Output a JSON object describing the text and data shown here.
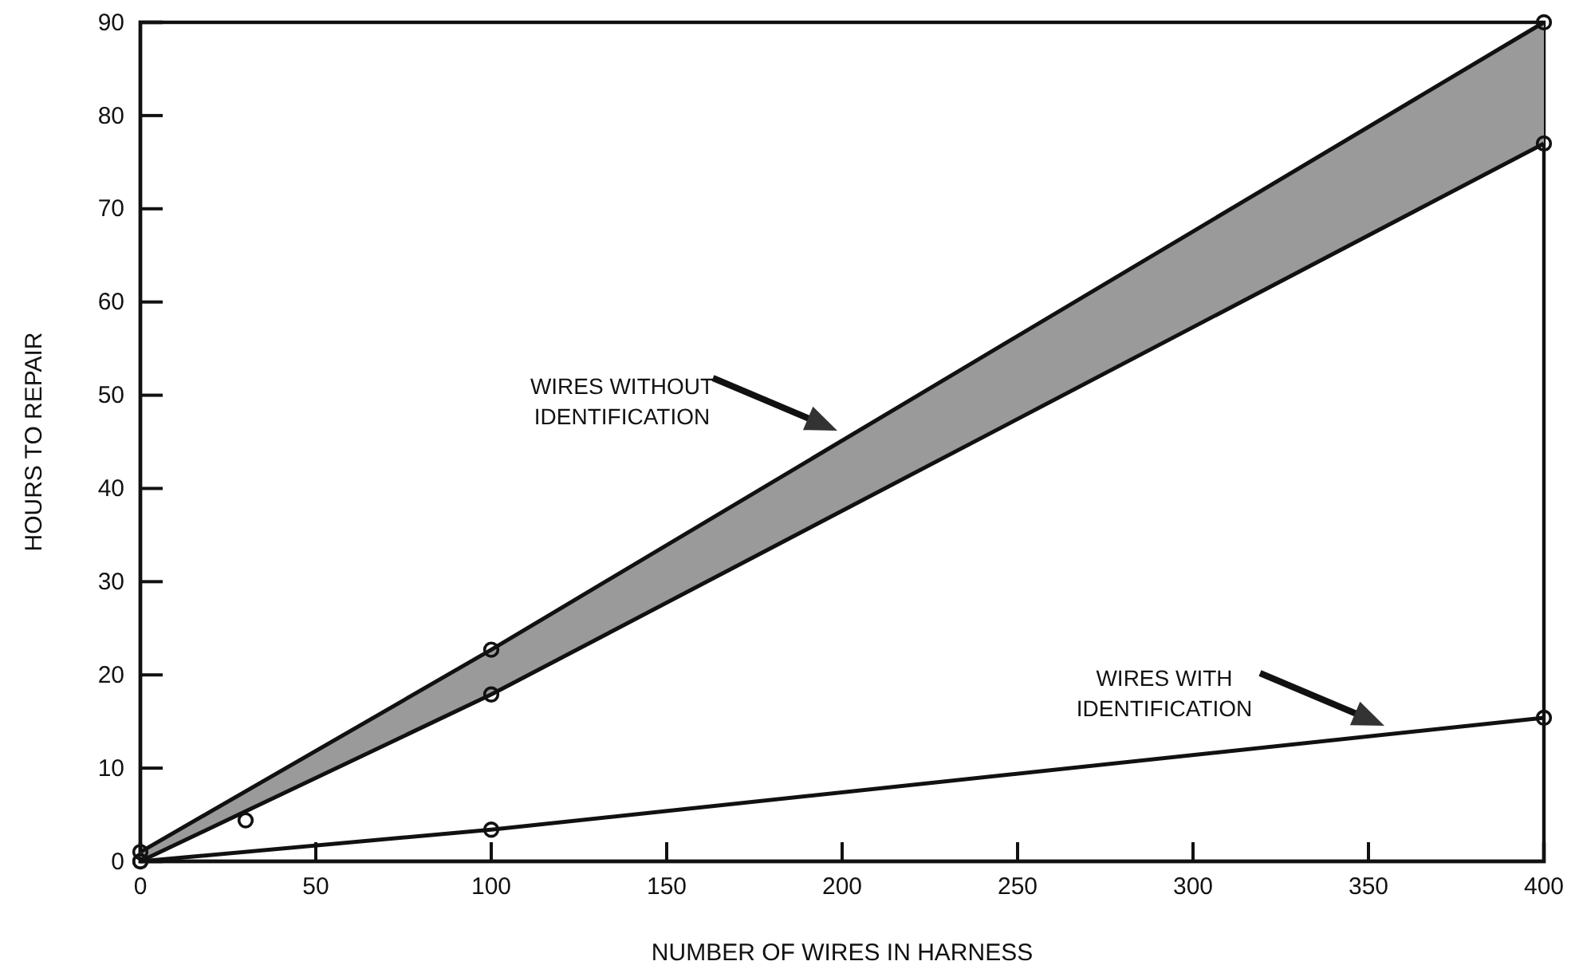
{
  "chart_data": {
    "type": "line",
    "xlabel": "NUMBER OF WIRES IN HARNESS",
    "ylabel": "HOURS TO REPAIR",
    "xlim": [
      0,
      400
    ],
    "xticks": [
      0,
      50,
      100,
      150,
      200,
      250,
      300,
      350,
      400
    ],
    "ylim": [
      0,
      90
    ],
    "yticks": [
      0,
      10,
      20,
      30,
      40,
      50,
      60,
      70,
      80,
      90
    ],
    "grid": false,
    "marker": "circle",
    "line_style": "solid",
    "series": [
      {
        "color": "#111111",
        "x": [
          0,
          100,
          400
        ],
        "values": [
          1,
          22.7,
          90
        ],
        "lower": [
          0,
          17.9,
          77
        ],
        "upper": [
          1,
          22.7,
          90
        ]
      },
      {
        "color": "#111111",
        "x": [
          0,
          100,
          400
        ],
        "values": [
          0,
          17.9,
          77
        ]
      },
      {
        "type": "scatter",
        "color": "#111111",
        "x": [
          30
        ],
        "values": [
          4.4
        ]
      },
      {
        "color": "#111111",
        "x": [
          0,
          100,
          400
        ],
        "values": [
          0,
          3.4,
          15.4
        ]
      }
    ],
    "annotations": [
      "WIRES WITHOUT IDENTIFICATION",
      "WIRES WITH IDENTIFICATION"
    ]
  }
}
